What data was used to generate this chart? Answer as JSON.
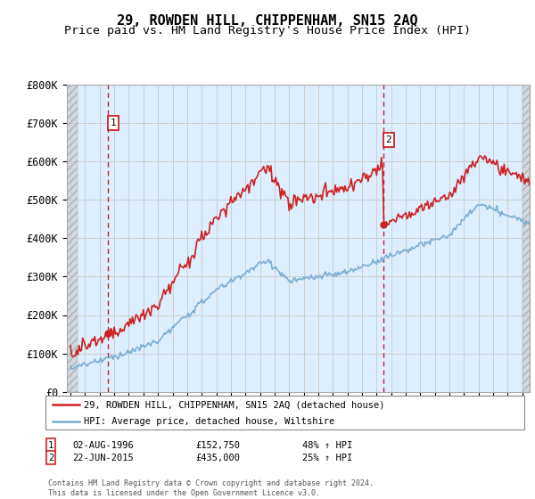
{
  "title": "29, ROWDEN HILL, CHIPPENHAM, SN15 2AQ",
  "subtitle": "Price paid vs. HM Land Registry's House Price Index (HPI)",
  "ylabel_ticks": [
    "£0",
    "£100K",
    "£200K",
    "£300K",
    "£400K",
    "£500K",
    "£600K",
    "£700K",
    "£800K"
  ],
  "ytick_vals": [
    0,
    100000,
    200000,
    300000,
    400000,
    500000,
    600000,
    700000,
    800000
  ],
  "ylim": [
    0,
    800000
  ],
  "xlim_start": 1993.75,
  "xlim_end": 2025.5,
  "transaction1_x": 1996.58,
  "transaction1_y": 152750,
  "transaction2_x": 2015.47,
  "transaction2_y": 435000,
  "hpi_color": "#7bafd4",
  "price_color": "#cc2222",
  "grid_color": "#cccccc",
  "bg_color": "#ddeeff",
  "legend_line1": "29, ROWDEN HILL, CHIPPENHAM, SN15 2AQ (detached house)",
  "legend_line2": "HPI: Average price, detached house, Wiltshire",
  "footnote": "Contains HM Land Registry data © Crown copyright and database right 2024.\nThis data is licensed under the Open Government Licence v3.0.",
  "title_fontsize": 11,
  "subtitle_fontsize": 9.5
}
